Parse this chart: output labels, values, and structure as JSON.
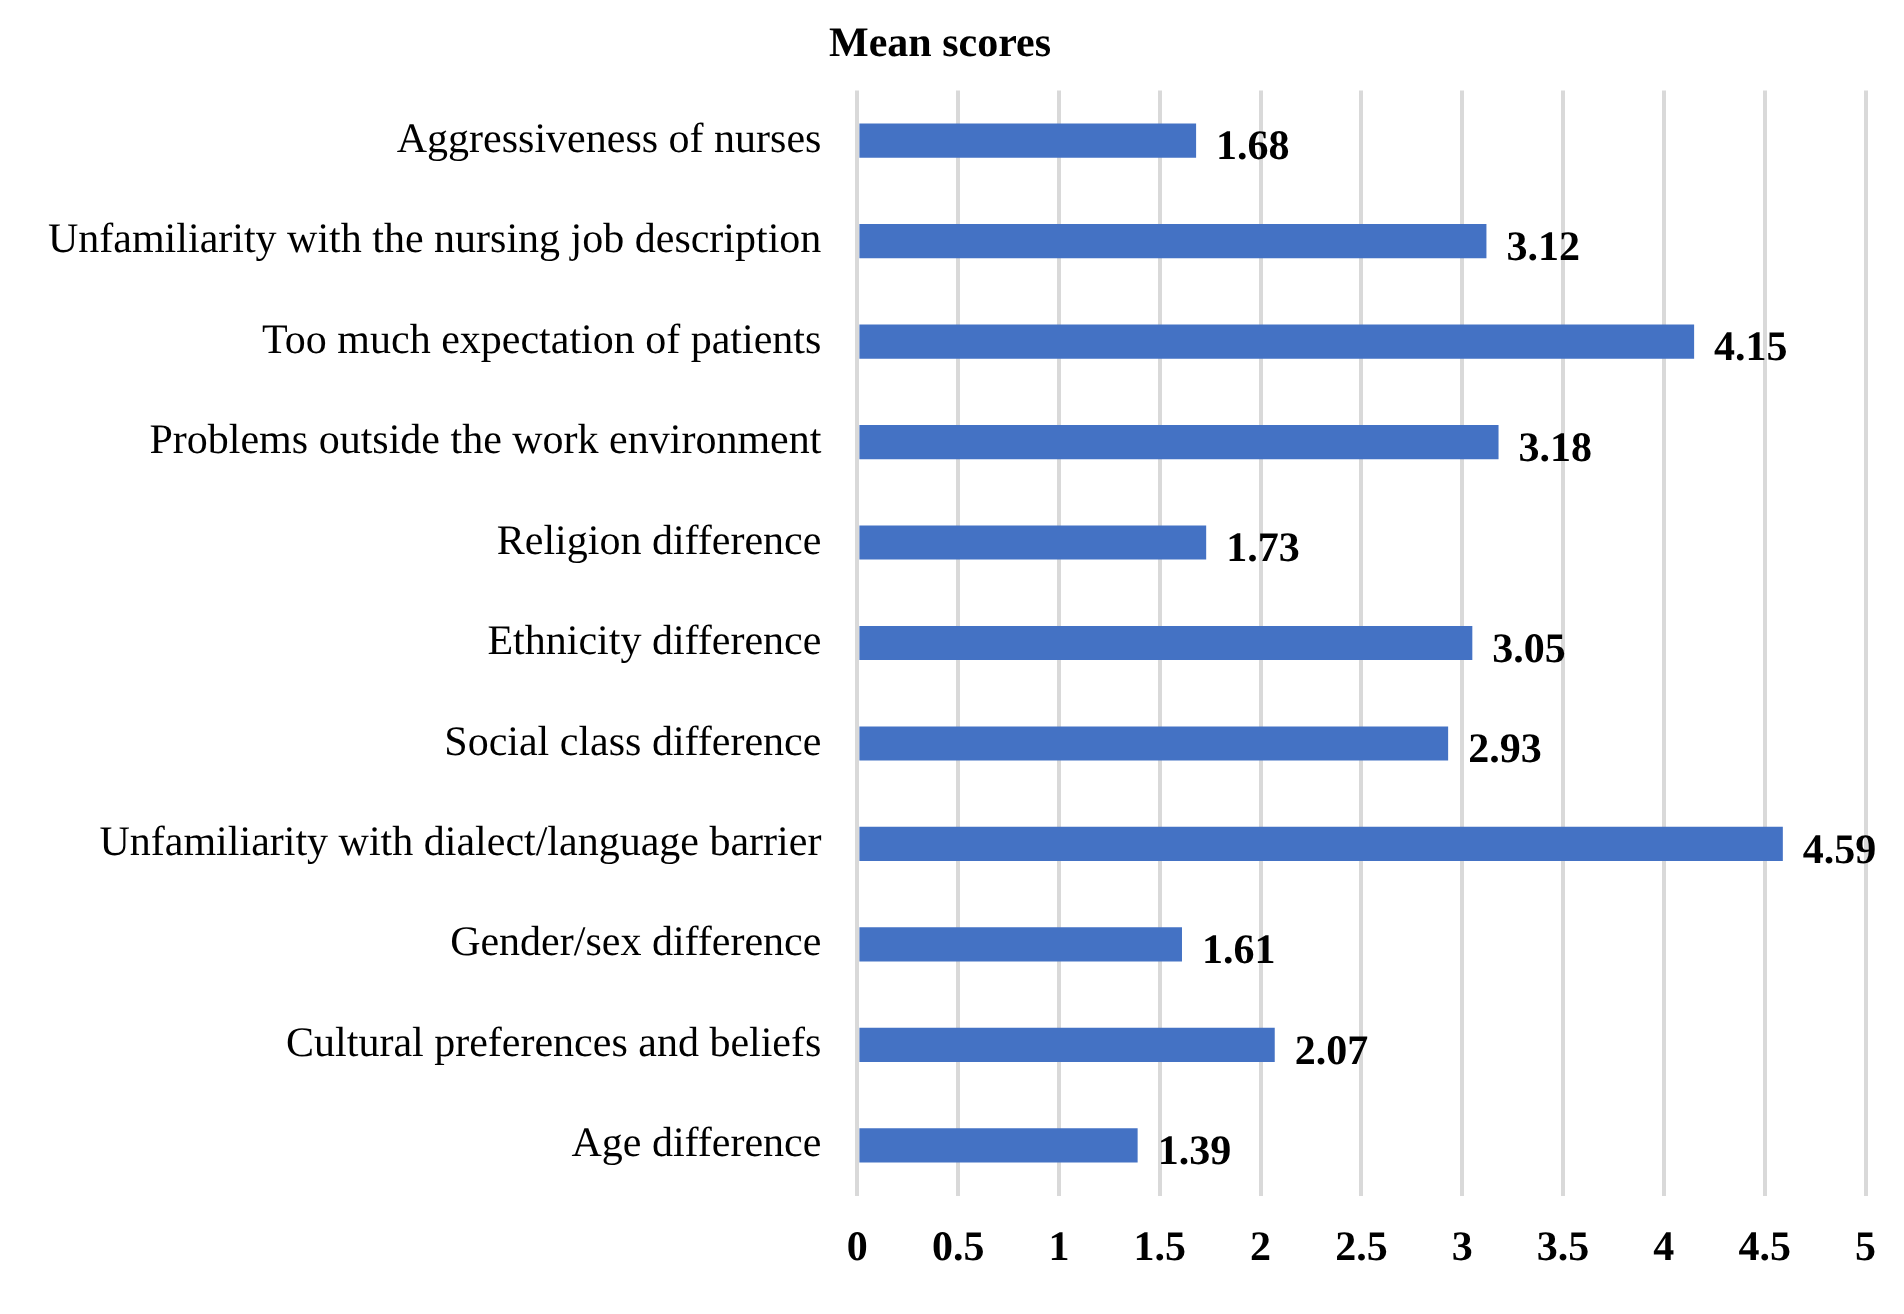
{
  "chart_data": {
    "type": "bar",
    "orientation": "horizontal",
    "title": "Mean scores",
    "categories": [
      "Aggressiveness of nurses",
      "Unfamiliarity with the nursing job description",
      "Too much expectation of patients",
      "Problems outside the work environment",
      "Religion difference",
      "Ethnicity difference",
      "Social class difference",
      "Unfamiliarity with dialect/language barrier",
      "Gender/sex difference",
      "Cultural preferences and beliefs",
      "Age difference"
    ],
    "values": [
      1.68,
      3.12,
      4.15,
      3.18,
      1.73,
      3.05,
      2.93,
      4.59,
      1.61,
      2.07,
      1.39
    ],
    "color": "#4472c4",
    "xlim": [
      0,
      5
    ],
    "xticks": [
      0,
      0.5,
      1,
      1.5,
      2,
      2.5,
      3,
      3.5,
      4,
      4.5,
      5
    ],
    "grid": "x",
    "data_labels": true,
    "legend": false
  }
}
